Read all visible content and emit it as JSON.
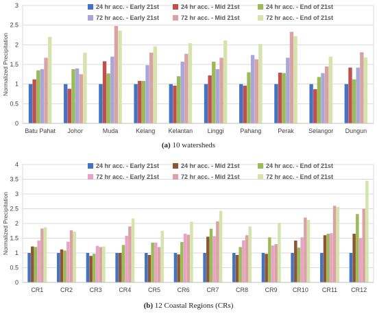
{
  "chart_data": [
    {
      "type": "bar",
      "caption_label": "(a)",
      "caption_text": "10 watersheds",
      "ylabel": "Normalized Precipitation",
      "ylim": [
        0,
        3
      ],
      "yticks": [
        "0",
        "0.5",
        "1",
        "1.5",
        "2",
        "2.5",
        "3"
      ],
      "grid": true,
      "legend_position": "top",
      "categories": [
        "Batu Pahat",
        "Johor",
        "Muda",
        "Kelang",
        "Kelantan",
        "Linggi",
        "Pahang",
        "Perak",
        "Selangor",
        "Dungun"
      ],
      "series": [
        {
          "name": "24 hr acc. - Early 21st",
          "color": "#4472C4",
          "values": [
            1.0,
            1.0,
            1.0,
            1.0,
            1.0,
            1.0,
            1.0,
            1.0,
            1.0,
            1.0
          ]
        },
        {
          "name": "24 hr acc. - Mid 21st",
          "color": "#C0504D",
          "values": [
            1.12,
            0.88,
            1.58,
            1.08,
            0.96,
            1.22,
            0.96,
            1.29,
            0.87,
            1.42
          ]
        },
        {
          "name": "24 hr acc. - End of 21st",
          "color": "#9BBB59",
          "values": [
            1.35,
            1.38,
            1.27,
            1.08,
            1.2,
            1.57,
            1.3,
            1.28,
            1.18,
            1.12
          ]
        },
        {
          "name": "72 hr acc. - Early 21st",
          "color": "#A9A7D9",
          "values": [
            1.38,
            1.4,
            1.7,
            1.48,
            1.57,
            1.38,
            1.74,
            1.67,
            1.28,
            1.42
          ]
        },
        {
          "name": "72 hr acc. - Mid 21st",
          "color": "#D9A3A3",
          "values": [
            1.67,
            1.25,
            2.48,
            1.8,
            1.77,
            1.67,
            1.63,
            2.33,
            1.45,
            1.81
          ]
        },
        {
          "name": "72 hr acc. - End of 21st",
          "color": "#D6E3AC",
          "values": [
            2.2,
            1.8,
            2.36,
            1.96,
            2.04,
            2.11,
            2.02,
            2.22,
            1.7,
            1.68
          ]
        }
      ]
    },
    {
      "type": "bar",
      "caption_label": "(b)",
      "caption_text": "12 Coastal Regions (CRs)",
      "ylabel": "Normalized Precipitation",
      "ylim": [
        0,
        4
      ],
      "yticks": [
        "0",
        "0.5",
        "1",
        "1.5",
        "2",
        "2.5",
        "3",
        "3.5",
        "4"
      ],
      "grid": true,
      "legend_position": "top",
      "categories": [
        "CR1",
        "CR2",
        "CR3",
        "CR4",
        "CR5",
        "CR6",
        "CR7",
        "CR8",
        "CR9",
        "CR10",
        "CR11",
        "CR12"
      ],
      "series": [
        {
          "name": "24 hr acc. - Early 21st",
          "color": "#4472C4",
          "values": [
            1.0,
            1.0,
            1.0,
            1.0,
            1.0,
            1.0,
            1.0,
            1.0,
            1.0,
            1.0,
            1.0,
            1.0
          ]
        },
        {
          "name": "24 hr acc. - Mid 21st",
          "color": "#8E5631",
          "values": [
            1.22,
            1.12,
            0.9,
            1.0,
            0.93,
            0.95,
            1.55,
            0.93,
            0.97,
            1.42,
            1.6,
            1.65
          ]
        },
        {
          "name": "24 hr acc. - End of 21st",
          "color": "#9BBB59",
          "values": [
            1.2,
            1.08,
            0.97,
            1.27,
            1.35,
            1.37,
            1.82,
            1.2,
            1.53,
            1.18,
            1.65,
            2.32
          ]
        },
        {
          "name": "72 hr acc. - Early 21st",
          "color": "#E8A3C6",
          "values": [
            1.42,
            1.38,
            1.24,
            1.58,
            1.35,
            1.65,
            1.57,
            1.43,
            1.25,
            1.53,
            1.67,
            1.5
          ]
        },
        {
          "name": "72 hr acc. - Mid 21st",
          "color": "#D9A3A3",
          "values": [
            1.83,
            1.77,
            1.2,
            1.9,
            1.2,
            1.62,
            2.07,
            1.6,
            1.3,
            2.2,
            2.6,
            2.5
          ]
        },
        {
          "name": "72 hr acc. - End of 21st",
          "color": "#D6E3AC",
          "values": [
            1.87,
            1.72,
            1.22,
            2.17,
            1.75,
            2.06,
            2.43,
            1.9,
            2.02,
            2.12,
            2.56,
            3.45
          ]
        }
      ]
    }
  ]
}
